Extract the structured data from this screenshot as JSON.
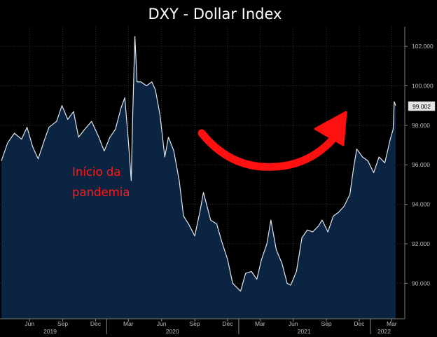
{
  "chart_data": {
    "type": "area",
    "title": "DXY - Dollar Index",
    "annotation": "Início da\npandemia",
    "last_value_label": "99.002",
    "y_ticks": [
      90,
      92,
      94,
      96,
      98,
      100,
      102
    ],
    "y_tick_labels": [
      "90.000",
      "92.000",
      "94.000",
      "96.000",
      "98.000",
      "100.000",
      "102.000"
    ],
    "ylim": [
      88.2,
      103.0
    ],
    "x_month_labels": [
      "Jun",
      "Sep",
      "Dec",
      "Mar",
      "Jun",
      "Sep",
      "Dec",
      "Mar",
      "Jun",
      "Sep",
      "Dec",
      "Mar"
    ],
    "x_year_labels": [
      "2019",
      "2020",
      "2021",
      "2022"
    ],
    "grid": true,
    "colors": {
      "line": "#dfe6ee",
      "fill": "#0b2442",
      "arrow": "#ff1010",
      "annotation": "#ff1a1a",
      "grid": "#4a4a4a",
      "axis": "#777777"
    },
    "series": [
      {
        "x": [
          "2019-03-15",
          "2019-04-01",
          "2019-04-20",
          "2019-05-10",
          "2019-05-25",
          "2019-06-10",
          "2019-06-25",
          "2019-07-15",
          "2019-07-25",
          "2019-08-15",
          "2019-08-30",
          "2019-09-15",
          "2019-10-01",
          "2019-10-15",
          "2019-11-01",
          "2019-11-20",
          "2019-12-10",
          "2019-12-25",
          "2020-01-10",
          "2020-01-25",
          "2020-02-10",
          "2020-02-20",
          "2020-03-01",
          "2020-03-09",
          "2020-03-13",
          "2020-03-19",
          "2020-03-25",
          "2020-04-05",
          "2020-04-20",
          "2020-05-05",
          "2020-05-15",
          "2020-05-28",
          "2020-06-10",
          "2020-06-20",
          "2020-07-05",
          "2020-07-20",
          "2020-08-01",
          "2020-08-15",
          "2020-09-01",
          "2020-09-15",
          "2020-09-25",
          "2020-10-15",
          "2020-11-01",
          "2020-11-15",
          "2020-12-01",
          "2020-12-15",
          "2021-01-06",
          "2021-01-20",
          "2021-02-05",
          "2021-02-20",
          "2021-03-05",
          "2021-03-20",
          "2021-03-31",
          "2021-04-15",
          "2021-05-01",
          "2021-05-15",
          "2021-05-25",
          "2021-06-10",
          "2021-06-25",
          "2021-07-10",
          "2021-07-25",
          "2021-08-10",
          "2021-08-20",
          "2021-09-05",
          "2021-09-20",
          "2021-10-05",
          "2021-10-20",
          "2021-11-05",
          "2021-11-15",
          "2021-11-24",
          "2021-12-10",
          "2021-12-25",
          "2022-01-10",
          "2022-01-25",
          "2022-02-10",
          "2022-02-25",
          "2022-03-05",
          "2022-03-08",
          "2022-03-12"
        ],
        "y": [
          96.2,
          97.1,
          97.6,
          97.3,
          97.9,
          96.9,
          96.3,
          97.4,
          97.9,
          98.2,
          99.0,
          98.3,
          98.7,
          97.4,
          97.8,
          98.2,
          97.4,
          96.7,
          97.4,
          97.8,
          98.9,
          99.4,
          97.2,
          95.2,
          98.5,
          102.5,
          100.2,
          100.2,
          100.0,
          100.2,
          99.8,
          98.5,
          96.4,
          97.4,
          96.7,
          95.2,
          93.4,
          93.0,
          92.4,
          93.6,
          94.6,
          93.2,
          93.0,
          92.1,
          91.2,
          90.0,
          89.6,
          90.5,
          90.6,
          90.2,
          91.2,
          92.0,
          93.2,
          91.7,
          91.0,
          90.0,
          89.9,
          90.6,
          92.3,
          92.7,
          92.6,
          92.9,
          93.2,
          92.6,
          93.4,
          93.6,
          93.9,
          94.5,
          95.8,
          96.8,
          96.4,
          96.2,
          95.6,
          96.4,
          96.1,
          97.3,
          97.8,
          99.2,
          99.0
        ]
      }
    ]
  }
}
